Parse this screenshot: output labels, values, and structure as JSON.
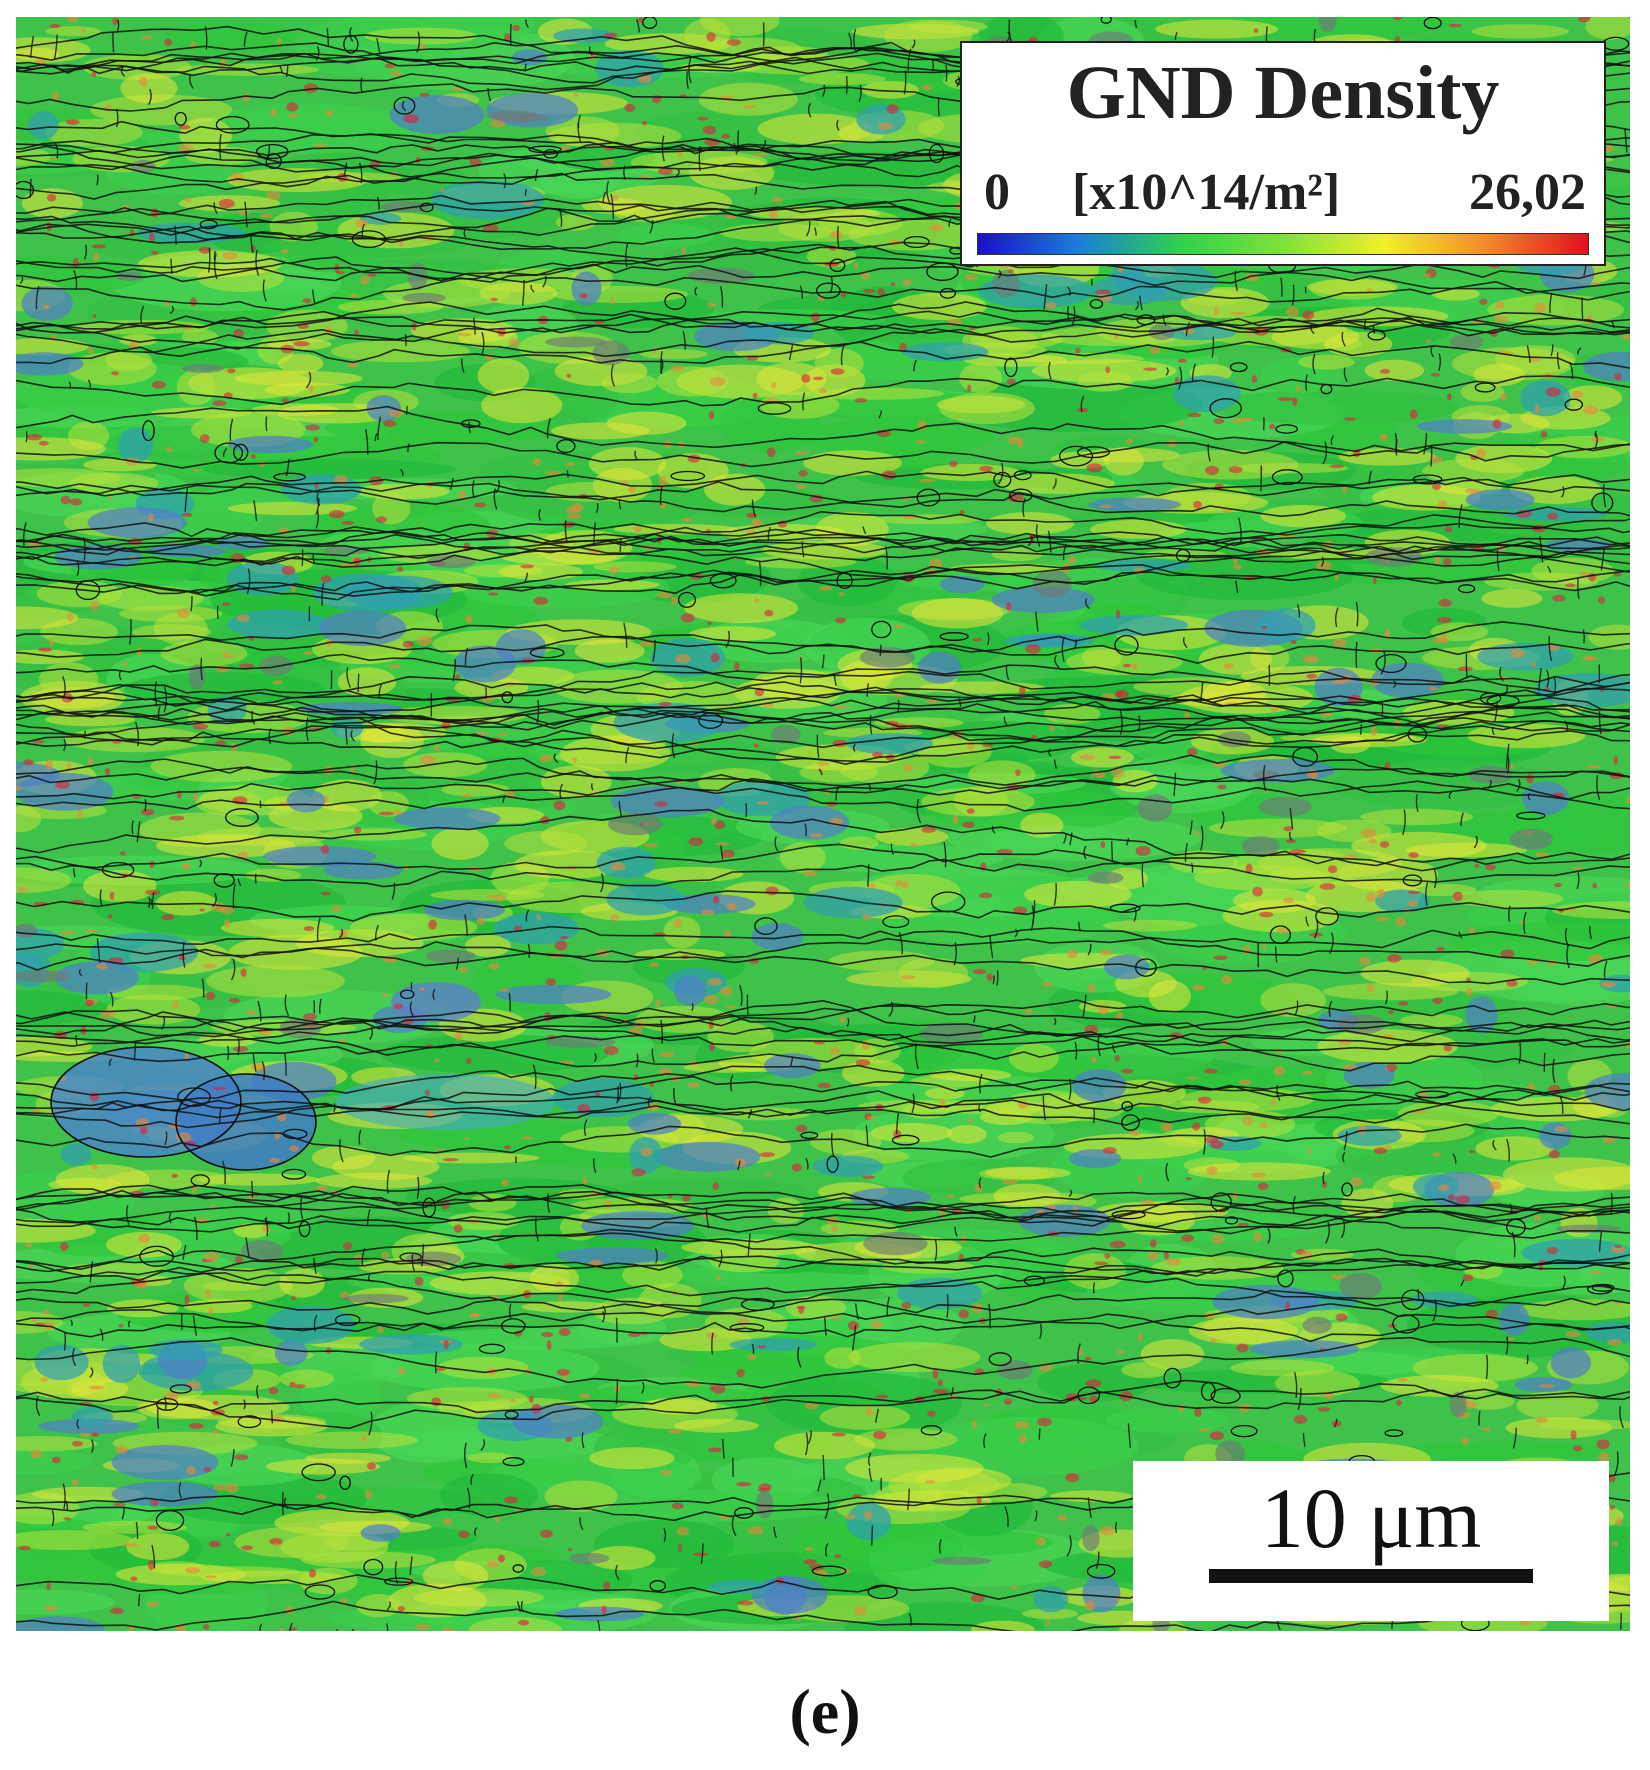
{
  "figure": {
    "panel_label": "(e)",
    "map_type": "GND density map with grain boundaries",
    "colors": {
      "background": "#3fc24a",
      "low": "#1a2fd0",
      "mid": "#29c83a",
      "high_yellow": "#e4e83a",
      "high": "#e0203a",
      "boundary": "#111111",
      "unindexed": "#6f7a78"
    }
  },
  "legend": {
    "title": "GND Density",
    "min_label": "0",
    "unit_label": "[x10^14/m²]",
    "max_label": "26,02",
    "min_value": 0,
    "max_value": 26.02,
    "colormap": [
      "#1a10c8",
      "#1a7fd8",
      "#2fd14a",
      "#7ee23a",
      "#f1ef2a",
      "#f28a2a",
      "#e0101e"
    ]
  },
  "scalebar": {
    "label": "10 μm",
    "length_um": 10
  }
}
